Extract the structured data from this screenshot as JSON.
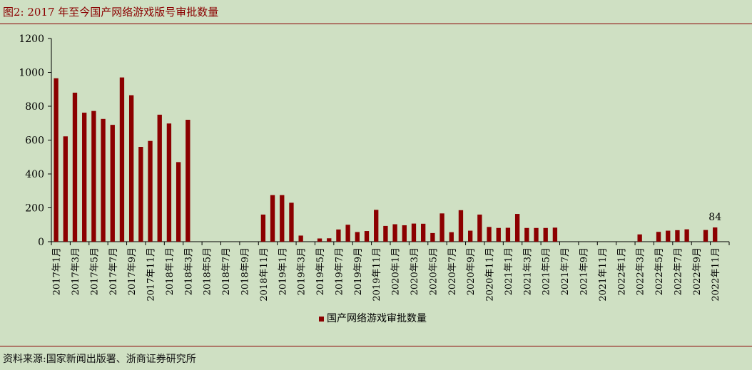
{
  "header": {
    "title": "图2:   2017 年至今国产网络游戏版号审批数量"
  },
  "footer": {
    "source": "资料来源:国家新闻出版署、浙商证券研究所"
  },
  "colors": {
    "bar": "#8b0000",
    "accent": "#8b0000",
    "background": "#cfe0c3"
  },
  "chart_data": {
    "type": "bar",
    "title": "",
    "xlabel": "",
    "ylabel": "",
    "ylim": [
      0,
      1200
    ],
    "yticks": [
      0,
      200,
      400,
      600,
      800,
      1000,
      1200
    ],
    "grid": false,
    "legend_placement": "bottom-center",
    "categories": [
      "2017年1月",
      "2017年2月",
      "2017年3月",
      "2017年4月",
      "2017年5月",
      "2017年6月",
      "2017年7月",
      "2017年8月",
      "2017年9月",
      "2017年10月",
      "2017年11月",
      "2017年12月",
      "2018年1月",
      "2018年2月",
      "2018年3月",
      "2018年4月",
      "2018年5月",
      "2018年6月",
      "2018年7月",
      "2018年8月",
      "2018年9月",
      "2018年10月",
      "2018年11月",
      "2018年12月",
      "2019年1月",
      "2019年2月",
      "2019年3月",
      "2019年4月",
      "2019年5月",
      "2019年6月",
      "2019年7月",
      "2019年8月",
      "2019年9月",
      "2019年10月",
      "2019年11月",
      "2019年12月",
      "2020年1月",
      "2020年2月",
      "2020年3月",
      "2020年4月",
      "2020年5月",
      "2020年6月",
      "2020年7月",
      "2020年8月",
      "2020年9月",
      "2020年10月",
      "2020年11月",
      "2020年12月",
      "2021年1月",
      "2021年2月",
      "2021年3月",
      "2021年4月",
      "2021年5月",
      "2021年6月",
      "2021年7月",
      "2021年8月",
      "2021年9月",
      "2021年10月",
      "2021年11月",
      "2021年12月",
      "2022年1月",
      "2022年2月",
      "2022年3月",
      "2022年4月",
      "2022年5月",
      "2022年6月",
      "2022年7月",
      "2022年8月",
      "2022年9月",
      "2022年10月",
      "2022年11月",
      "2022年12月"
    ],
    "tick_labels": [
      "2017年1月",
      "2017年3月",
      "2017年5月",
      "2017年7月",
      "2017年9月",
      "2017年11月",
      "2018年1月",
      "2018年3月",
      "2018年5月",
      "2018年7月",
      "2018年9月",
      "2018年11月",
      "2019年1月",
      "2019年3月",
      "2019年5月",
      "2019年7月",
      "2019年9月",
      "2019年11月",
      "2020年1月",
      "2020年3月",
      "2020年5月",
      "2020年7月",
      "2020年9月",
      "2020年11月",
      "2021年1月",
      "2021年3月",
      "2021年5月",
      "2021年7月",
      "2021年9月",
      "2021年11月",
      "2022年1月",
      "2022年3月",
      "2022年5月",
      "2022年7月",
      "2022年9月",
      "2022年11月"
    ],
    "series": [
      {
        "name": "国产网络游戏审批数量",
        "values": [
          965,
          622,
          880,
          762,
          772,
          725,
          690,
          970,
          865,
          560,
          595,
          750,
          698,
          470,
          720,
          0,
          0,
          0,
          0,
          0,
          0,
          0,
          160,
          275,
          275,
          230,
          36,
          0,
          19,
          20,
          72,
          100,
          57,
          63,
          188,
          93,
          103,
          97,
          107,
          106,
          51,
          167,
          56,
          186,
          65,
          160,
          87,
          81,
          82,
          164,
          81,
          81,
          81,
          83,
          0,
          0,
          0,
          0,
          0,
          0,
          0,
          0,
          43,
          0,
          58,
          65,
          68,
          73,
          0,
          69,
          84,
          0
        ]
      }
    ],
    "annotations": [
      {
        "category": "2022年11月",
        "text": "84"
      }
    ]
  }
}
